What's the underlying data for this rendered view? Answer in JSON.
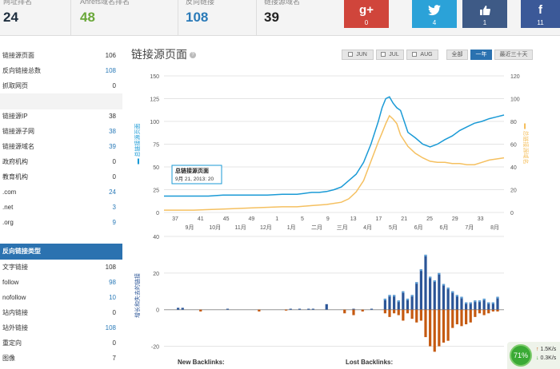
{
  "stats": [
    {
      "label": "网址排名",
      "value": "24",
      "color": "#1e2e3e"
    },
    {
      "label": "Ahrefs域名排名",
      "value": "48",
      "color": "#6aa83a"
    },
    {
      "label": "反向链接",
      "value": "108",
      "color": "#2a7ab8"
    },
    {
      "label": "链接源域名",
      "value": "39",
      "color": "#222222"
    }
  ],
  "social": [
    {
      "glyph": "g+",
      "count": "0",
      "color": "#d0453b",
      "icon": "google-plus-icon"
    },
    {
      "glyph": "t",
      "count": "4",
      "color": "#2ba2d8",
      "icon": "twitter-icon"
    },
    {
      "glyph": "👍",
      "count": "1",
      "color": "#3e5a86",
      "icon": "thumbs-up-icon"
    },
    {
      "glyph": "f",
      "count": "11",
      "color": "#3b5998",
      "icon": "facebook-icon"
    }
  ],
  "sidebar": {
    "group1": [
      {
        "label": "链接源页面",
        "value": "106",
        "blue": false
      },
      {
        "label": "反向链接总数",
        "value": "108",
        "blue": true
      },
      {
        "label": "抓取网页",
        "value": "0",
        "blue": false
      },
      {
        "label": "",
        "value": "",
        "blue": false
      }
    ],
    "group2": [
      {
        "label": "链接源IP",
        "value": "38",
        "blue": false
      },
      {
        "label": "链接源子网",
        "value": "38",
        "blue": true
      },
      {
        "label": "链接源域名",
        "value": "39",
        "blue": true
      },
      {
        "label": "政府机构",
        "value": "0",
        "blue": false
      },
      {
        "label": "教育机构",
        "value": "0",
        "blue": false
      },
      {
        "label": ".com",
        "value": "24",
        "blue": true
      },
      {
        "label": ".net",
        "value": "3",
        "blue": true
      },
      {
        "label": ".org",
        "value": "9",
        "blue": true
      }
    ],
    "section_title": "反向链接类型",
    "group3": [
      {
        "label": "文字链接",
        "value": "108",
        "blue": false
      },
      {
        "label": "follow",
        "value": "98",
        "blue": true
      },
      {
        "label": "nofollow",
        "value": "10",
        "blue": true
      },
      {
        "label": "站内链接",
        "value": "0",
        "blue": false
      },
      {
        "label": "站外链接",
        "value": "108",
        "blue": true
      },
      {
        "label": "重定向",
        "value": "0",
        "blue": false
      },
      {
        "label": "图像",
        "value": "7",
        "blue": false
      }
    ]
  },
  "main": {
    "title": "链接源页面",
    "buttons": [
      {
        "label": "JUN",
        "check": true,
        "active": false
      },
      {
        "label": "JUL",
        "check": true,
        "active": false
      },
      {
        "label": "AUG",
        "check": true,
        "active": false
      },
      {
        "label": "全部",
        "check": false,
        "active": false
      },
      {
        "label": "一年",
        "check": false,
        "active": true
      },
      {
        "label": "最近三十天",
        "check": false,
        "active": false
      }
    ],
    "legend_new": "New Backlinks:",
    "legend_lost": "Lost Backlinks:"
  },
  "speed": {
    "percent": "71%",
    "up": "1.5K/s",
    "down": "0.3K/s"
  },
  "chart_data": [
    {
      "type": "line",
      "ylabel": "总链接源页面",
      "y2label": "总链接源域名",
      "ylim": [
        0,
        150
      ],
      "y2lim": [
        0,
        120
      ],
      "yticks": [
        0,
        25,
        50,
        75,
        100,
        125,
        150
      ],
      "y2ticks": [
        0,
        20,
        40,
        60,
        80,
        100,
        120
      ],
      "x_week_ticks": [
        "37",
        "41",
        "45",
        "49",
        "1",
        "5",
        "9",
        "13",
        "17",
        "21",
        "25",
        "29",
        "33"
      ],
      "x_month_ticks": [
        "9月",
        "10月",
        "11月",
        "12月",
        "1月",
        "二月",
        "三月",
        "4月",
        "5月",
        "6月",
        "6月",
        "7月",
        "8月"
      ],
      "tooltip": {
        "title": "总链接源页面",
        "date": "9月 21, 2013: 20"
      },
      "colors": {
        "pages": "#1a9ad6",
        "domains": "#f5c060"
      },
      "series": [
        {
          "name": "总链接源页面",
          "axis": "left",
          "points": [
            [
              0,
              18
            ],
            [
              4,
              18
            ],
            [
              8,
              18
            ],
            [
              12,
              18
            ],
            [
              16,
              19
            ],
            [
              20,
              19
            ],
            [
              24,
              19
            ],
            [
              28,
              19
            ],
            [
              32,
              20
            ],
            [
              36,
              20
            ],
            [
              38,
              21
            ],
            [
              40,
              22
            ],
            [
              42,
              22
            ],
            [
              44,
              23
            ],
            [
              46,
              25
            ],
            [
              48,
              28
            ],
            [
              50,
              35
            ],
            [
              52,
              42
            ],
            [
              54,
              55
            ],
            [
              56,
              75
            ],
            [
              58,
              100
            ],
            [
              59,
              115
            ],
            [
              60,
              125
            ],
            [
              61,
              127
            ],
            [
              62,
              120
            ],
            [
              63,
              115
            ],
            [
              64,
              112
            ],
            [
              65,
              100
            ],
            [
              66,
              88
            ],
            [
              68,
              82
            ],
            [
              70,
              75
            ],
            [
              72,
              72
            ],
            [
              74,
              75
            ],
            [
              76,
              80
            ],
            [
              78,
              84
            ],
            [
              80,
              90
            ],
            [
              82,
              94
            ],
            [
              84,
              98
            ],
            [
              86,
              100
            ],
            [
              88,
              103
            ],
            [
              90,
              105
            ],
            [
              92,
              107
            ]
          ]
        },
        {
          "name": "总链接源域名",
          "axis": "right",
          "points": [
            [
              0,
              2
            ],
            [
              8,
              2
            ],
            [
              16,
              3
            ],
            [
              24,
              4
            ],
            [
              32,
              5
            ],
            [
              36,
              5
            ],
            [
              40,
              6
            ],
            [
              44,
              7
            ],
            [
              48,
              9
            ],
            [
              50,
              12
            ],
            [
              52,
              18
            ],
            [
              54,
              28
            ],
            [
              56,
              45
            ],
            [
              58,
              62
            ],
            [
              59,
              70
            ],
            [
              60,
              78
            ],
            [
              61,
              85
            ],
            [
              62,
              82
            ],
            [
              63,
              78
            ],
            [
              64,
              68
            ],
            [
              66,
              58
            ],
            [
              68,
              52
            ],
            [
              70,
              48
            ],
            [
              72,
              45
            ],
            [
              74,
              44
            ],
            [
              76,
              44
            ],
            [
              78,
              43
            ],
            [
              80,
              43
            ],
            [
              82,
              42
            ],
            [
              84,
              42
            ],
            [
              86,
              44
            ],
            [
              88,
              46
            ],
            [
              90,
              47
            ],
            [
              92,
              48
            ]
          ]
        }
      ]
    },
    {
      "type": "bar",
      "ylabel": "增长和失去的链接",
      "ylim": [
        -25,
        40
      ],
      "yticks": [
        -20,
        0,
        20,
        40
      ],
      "colors": {
        "new": "#2b5597",
        "new_light": "#5ea0d6",
        "lost": "#c55a11"
      },
      "series": [
        {
          "name": "New Backlinks",
          "values": [
            [
              1,
              1
            ],
            [
              2,
              1
            ],
            [
              12,
              0.5
            ],
            [
              26,
              0.5
            ],
            [
              28,
              0.5
            ],
            [
              30,
              0.5
            ],
            [
              31,
              0.5
            ],
            [
              34,
              3
            ],
            [
              40,
              0.5
            ],
            [
              44,
              0.5
            ],
            [
              47,
              6
            ],
            [
              48,
              8
            ],
            [
              49,
              8
            ],
            [
              50,
              5
            ],
            [
              51,
              10
            ],
            [
              52,
              6
            ],
            [
              53,
              8
            ],
            [
              54,
              15
            ],
            [
              55,
              22
            ],
            [
              56,
              30
            ],
            [
              57,
              18
            ],
            [
              58,
              16
            ],
            [
              59,
              20
            ],
            [
              60,
              14
            ],
            [
              61,
              12
            ],
            [
              62,
              10
            ],
            [
              63,
              8
            ],
            [
              64,
              7
            ],
            [
              65,
              4
            ],
            [
              66,
              4
            ],
            [
              67,
              5
            ],
            [
              68,
              5
            ],
            [
              69,
              6
            ],
            [
              70,
              4
            ],
            [
              71,
              4
            ],
            [
              72,
              7
            ]
          ]
        },
        {
          "name": "Lost Backlinks",
          "values": [
            [
              6,
              -1
            ],
            [
              19,
              -1
            ],
            [
              25,
              -0.5
            ],
            [
              38,
              -2
            ],
            [
              40,
              -3
            ],
            [
              42,
              -1
            ],
            [
              47,
              -2
            ],
            [
              48,
              -4
            ],
            [
              49,
              -2
            ],
            [
              50,
              -3
            ],
            [
              51,
              -6
            ],
            [
              52,
              -2
            ],
            [
              53,
              -5
            ],
            [
              54,
              -7
            ],
            [
              55,
              -6
            ],
            [
              56,
              -15
            ],
            [
              57,
              -20
            ],
            [
              58,
              -23
            ],
            [
              59,
              -20
            ],
            [
              60,
              -18
            ],
            [
              61,
              -17
            ],
            [
              62,
              -10
            ],
            [
              63,
              -8
            ],
            [
              64,
              -9
            ],
            [
              65,
              -8
            ],
            [
              66,
              -7
            ],
            [
              67,
              -4
            ],
            [
              68,
              -2
            ],
            [
              69,
              -3
            ],
            [
              70,
              -2
            ],
            [
              71,
              -1
            ],
            [
              72,
              -1
            ]
          ]
        }
      ]
    }
  ]
}
